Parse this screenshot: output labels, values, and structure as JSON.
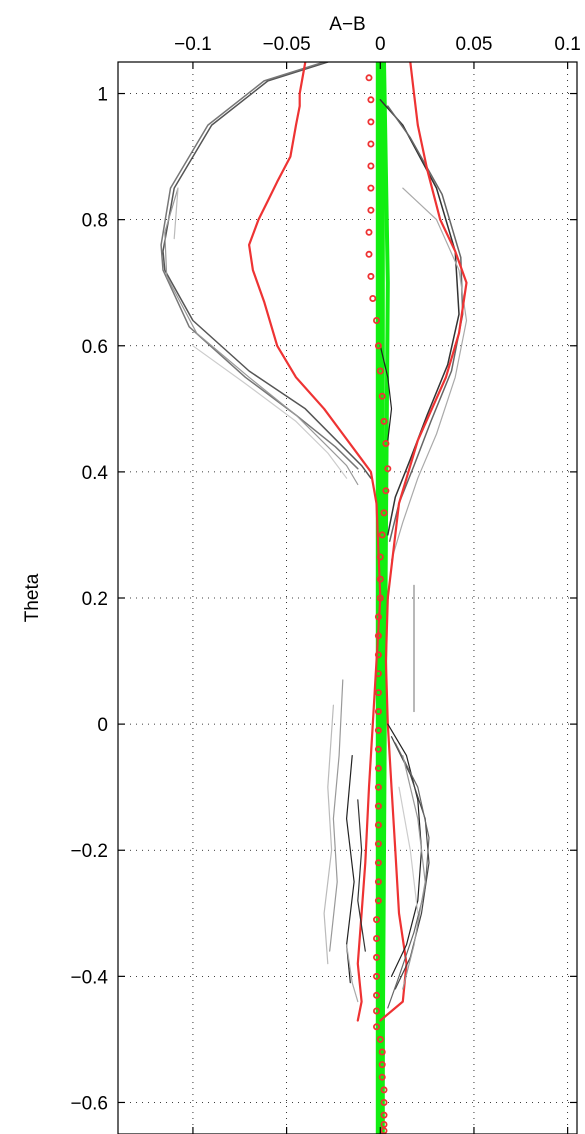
{
  "chart_data": {
    "type": "line",
    "title": "",
    "xlabel": "A−B",
    "ylabel": "Theta",
    "xlim": [
      -0.14,
      0.105
    ],
    "ylim": [
      -0.65,
      1.05
    ],
    "x_axis_position": "top",
    "grid": true,
    "legend": "none",
    "xticks": [
      -0.1,
      -0.05,
      0,
      0.05,
      0.1
    ],
    "xtick_labels": [
      "−0.1",
      "−0.05",
      "0",
      "0.05",
      "0.1"
    ],
    "yticks": [
      1,
      0.8,
      0.6,
      0.4,
      0.2,
      0,
      -0.2,
      -0.4,
      -0.6
    ],
    "ytick_labels": [
      "1",
      "0.8",
      "0.6",
      "0.4",
      "0.2",
      "0",
      "−0.2",
      "−0.4",
      "−0.6"
    ],
    "colors": {
      "red": "#ee3333",
      "green": "#11ee11",
      "dark": "#222222",
      "mid": "#707070",
      "light": "#bbbbbb"
    },
    "series": [
      {
        "color": "#11ee11",
        "width": 9,
        "points": [
          [
            0.0,
            -0.65
          ],
          [
            0.0,
            1.05
          ]
        ]
      },
      {
        "color": "#11ee11",
        "width": 4,
        "points": [
          [
            0.001,
            -0.65
          ],
          [
            0.002,
            -0.2
          ],
          [
            0.003,
            0.3
          ],
          [
            0.004,
            0.7
          ],
          [
            0.002,
            1.05
          ]
        ]
      },
      {
        "color": "#555555",
        "width": 1.5,
        "points": [
          [
            -0.028,
            1.05
          ],
          [
            -0.06,
            1.02
          ],
          [
            -0.09,
            0.95
          ],
          [
            -0.11,
            0.85
          ],
          [
            -0.116,
            0.75
          ],
          [
            -0.115,
            0.72
          ],
          [
            -0.1,
            0.64
          ],
          [
            -0.07,
            0.56
          ],
          [
            -0.04,
            0.5
          ],
          [
            -0.02,
            0.44
          ],
          [
            -0.01,
            0.41
          ],
          [
            -0.005,
            0.39
          ]
        ]
      },
      {
        "color": "#777777",
        "width": 1.5,
        "points": [
          [
            -0.03,
            1.05
          ],
          [
            -0.062,
            1.02
          ],
          [
            -0.092,
            0.95
          ],
          [
            -0.112,
            0.85
          ],
          [
            -0.117,
            0.76
          ],
          [
            -0.116,
            0.72
          ],
          [
            -0.102,
            0.63
          ],
          [
            -0.072,
            0.55
          ],
          [
            -0.045,
            0.49
          ],
          [
            -0.024,
            0.44
          ],
          [
            -0.012,
            0.405
          ]
        ]
      },
      {
        "color": "#999999",
        "width": 1.2,
        "points": [
          [
            -0.108,
            0.85
          ],
          [
            -0.115,
            0.78
          ],
          [
            -0.114,
            0.71
          ],
          [
            -0.098,
            0.62
          ],
          [
            -0.07,
            0.55
          ],
          [
            -0.045,
            0.49
          ],
          [
            -0.028,
            0.44
          ],
          [
            -0.018,
            0.41
          ],
          [
            -0.012,
            0.38
          ]
        ]
      },
      {
        "color": "#cccccc",
        "width": 1.2,
        "points": [
          [
            -0.1,
            0.6
          ],
          [
            -0.072,
            0.54
          ],
          [
            -0.045,
            0.48
          ],
          [
            -0.028,
            0.43
          ],
          [
            -0.018,
            0.39
          ]
        ]
      },
      {
        "color": "#bbbbbb",
        "width": 1.2,
        "points": [
          [
            -0.11,
            0.77
          ],
          [
            -0.108,
            0.85
          ]
        ]
      },
      {
        "color": "#333333",
        "width": 1.5,
        "points": [
          [
            0.0,
            0.99
          ],
          [
            0.012,
            0.95
          ],
          [
            0.03,
            0.85
          ],
          [
            0.04,
            0.75
          ],
          [
            0.042,
            0.65
          ],
          [
            0.036,
            0.57
          ],
          [
            0.025,
            0.49
          ],
          [
            0.016,
            0.42
          ],
          [
            0.008,
            0.36
          ],
          [
            0.004,
            0.3
          ]
        ]
      },
      {
        "color": "#666666",
        "width": 1.5,
        "points": [
          [
            0.004,
            0.98
          ],
          [
            0.016,
            0.93
          ],
          [
            0.033,
            0.84
          ],
          [
            0.043,
            0.74
          ],
          [
            0.044,
            0.65
          ],
          [
            0.038,
            0.56
          ],
          [
            0.027,
            0.48
          ],
          [
            0.018,
            0.41
          ],
          [
            0.01,
            0.35
          ],
          [
            0.005,
            0.29
          ]
        ]
      },
      {
        "color": "#aaaaaa",
        "width": 1.2,
        "points": [
          [
            0.012,
            0.85
          ],
          [
            0.03,
            0.8
          ],
          [
            0.042,
            0.72
          ],
          [
            0.046,
            0.64
          ],
          [
            0.04,
            0.55
          ],
          [
            0.03,
            0.46
          ],
          [
            0.02,
            0.39
          ],
          [
            0.012,
            0.32
          ],
          [
            0.006,
            0.26
          ]
        ]
      },
      {
        "color": "#222222",
        "width": 1.2,
        "points": [
          [
            0.0,
            0.6
          ],
          [
            0.004,
            0.55
          ],
          [
            0.006,
            0.5
          ],
          [
            0.004,
            0.45
          ]
        ]
      },
      {
        "color": "#888888",
        "width": 1.2,
        "points": [
          [
            0.018,
            0.22
          ],
          [
            0.018,
            0.02
          ]
        ]
      },
      {
        "color": "#ee3333",
        "width": 2.2,
        "points": [
          [
            -0.012,
            -0.47
          ],
          [
            -0.01,
            -0.44
          ],
          [
            -0.012,
            -0.38
          ],
          [
            -0.01,
            -0.3
          ],
          [
            -0.008,
            -0.22
          ],
          [
            -0.006,
            -0.1
          ],
          [
            -0.004,
            0.0
          ],
          [
            -0.002,
            0.1
          ],
          [
            0.0,
            0.2
          ],
          [
            -0.002,
            0.35
          ],
          [
            -0.005,
            0.4
          ],
          [
            -0.01,
            0.42
          ],
          [
            -0.02,
            0.46
          ],
          [
            -0.03,
            0.5
          ],
          [
            -0.045,
            0.55
          ],
          [
            -0.055,
            0.6
          ],
          [
            -0.062,
            0.67
          ],
          [
            -0.068,
            0.72
          ],
          [
            -0.07,
            0.76
          ],
          [
            -0.065,
            0.8
          ],
          [
            -0.06,
            0.83
          ],
          [
            -0.055,
            0.86
          ],
          [
            -0.048,
            0.9
          ],
          [
            -0.045,
            0.95
          ],
          [
            -0.043,
            0.98
          ],
          [
            -0.043,
            1.0
          ],
          [
            -0.04,
            1.05
          ]
        ]
      },
      {
        "color": "#ee3333",
        "width": 2.2,
        "points": [
          [
            0.0,
            -0.47
          ],
          [
            0.012,
            -0.44
          ],
          [
            0.014,
            -0.38
          ],
          [
            0.01,
            -0.3
          ],
          [
            0.008,
            -0.2
          ],
          [
            0.006,
            -0.1
          ],
          [
            0.004,
            0.0
          ],
          [
            0.003,
            0.1
          ],
          [
            0.004,
            0.2
          ],
          [
            0.01,
            0.35
          ],
          [
            0.02,
            0.45
          ],
          [
            0.035,
            0.55
          ],
          [
            0.042,
            0.62
          ],
          [
            0.046,
            0.7
          ],
          [
            0.04,
            0.75
          ],
          [
            0.032,
            0.8
          ],
          [
            0.025,
            0.88
          ],
          [
            0.02,
            0.95
          ],
          [
            0.018,
            1.0
          ],
          [
            0.016,
            1.05
          ]
        ]
      },
      {
        "color": "#222222",
        "width": 1.2,
        "points": [
          [
            -0.015,
            -0.05
          ],
          [
            -0.018,
            -0.15
          ],
          [
            -0.014,
            -0.25
          ],
          [
            -0.018,
            -0.35
          ],
          [
            -0.016,
            -0.41
          ]
        ]
      },
      {
        "color": "#333333",
        "width": 1.2,
        "points": [
          [
            -0.012,
            -0.12
          ],
          [
            -0.01,
            -0.2
          ],
          [
            -0.012,
            -0.28
          ],
          [
            -0.008,
            -0.36
          ]
        ]
      },
      {
        "color": "#999999",
        "width": 1.2,
        "points": [
          [
            -0.02,
            0.07
          ],
          [
            -0.022,
            -0.05
          ],
          [
            -0.025,
            -0.15
          ],
          [
            -0.023,
            -0.25
          ],
          [
            -0.027,
            -0.36
          ]
        ]
      },
      {
        "color": "#bbbbbb",
        "width": 1.2,
        "points": [
          [
            -0.025,
            0.03
          ],
          [
            -0.028,
            -0.1
          ],
          [
            -0.026,
            -0.2
          ],
          [
            -0.03,
            -0.3
          ],
          [
            -0.028,
            -0.38
          ]
        ]
      },
      {
        "color": "#aaaaaa",
        "width": 1.2,
        "points": [
          [
            -0.018,
            -0.35
          ],
          [
            -0.015,
            -0.41
          ],
          [
            -0.012,
            -0.44
          ]
        ]
      },
      {
        "color": "#222222",
        "width": 1.2,
        "points": [
          [
            0.004,
            0.0
          ],
          [
            0.014,
            -0.05
          ],
          [
            0.02,
            -0.12
          ],
          [
            0.022,
            -0.2
          ],
          [
            0.02,
            -0.28
          ],
          [
            0.014,
            -0.35
          ],
          [
            0.006,
            -0.4
          ]
        ]
      },
      {
        "color": "#444444",
        "width": 1.2,
        "points": [
          [
            0.006,
            -0.02
          ],
          [
            0.016,
            -0.08
          ],
          [
            0.024,
            -0.15
          ],
          [
            0.026,
            -0.22
          ],
          [
            0.022,
            -0.3
          ],
          [
            0.016,
            -0.37
          ],
          [
            0.008,
            -0.42
          ]
        ]
      },
      {
        "color": "#666666",
        "width": 1.2,
        "points": [
          [
            0.008,
            -0.03
          ],
          [
            0.02,
            -0.1
          ],
          [
            0.026,
            -0.18
          ],
          [
            0.024,
            -0.26
          ],
          [
            0.018,
            -0.33
          ],
          [
            0.01,
            -0.4
          ],
          [
            0.004,
            -0.45
          ]
        ]
      },
      {
        "color": "#999999",
        "width": 1.2,
        "points": [
          [
            0.012,
            -0.05
          ],
          [
            0.02,
            -0.15
          ],
          [
            0.024,
            -0.25
          ],
          [
            0.018,
            -0.35
          ],
          [
            0.012,
            -0.42
          ]
        ]
      },
      {
        "color": "#cccccc",
        "width": 1.2,
        "points": [
          [
            0.01,
            -0.1
          ],
          [
            0.016,
            -0.2
          ],
          [
            0.02,
            -0.3
          ]
        ]
      }
    ],
    "marker_series": {
      "color": "#ee3333",
      "marker": "circle",
      "points": [
        [
          -0.006,
          1.025
        ],
        [
          -0.005,
          0.99
        ],
        [
          -0.005,
          0.955
        ],
        [
          -0.005,
          0.92
        ],
        [
          -0.005,
          0.885
        ],
        [
          -0.005,
          0.85
        ],
        [
          -0.005,
          0.815
        ],
        [
          -0.006,
          0.78
        ],
        [
          -0.006,
          0.745
        ],
        [
          -0.005,
          0.71
        ],
        [
          -0.004,
          0.675
        ],
        [
          -0.002,
          0.64
        ],
        [
          -0.001,
          0.6
        ],
        [
          0.0,
          0.56
        ],
        [
          0.001,
          0.52
        ],
        [
          0.002,
          0.48
        ],
        [
          0.003,
          0.445
        ],
        [
          0.004,
          0.405
        ],
        [
          0.003,
          0.37
        ],
        [
          0.002,
          0.335
        ],
        [
          0.001,
          0.3
        ],
        [
          0.0,
          0.265
        ],
        [
          0.0,
          0.23
        ],
        [
          0.0,
          0.2
        ],
        [
          -0.001,
          0.17
        ],
        [
          -0.001,
          0.14
        ],
        [
          -0.001,
          0.11
        ],
        [
          -0.001,
          0.08
        ],
        [
          -0.001,
          0.05
        ],
        [
          -0.001,
          0.02
        ],
        [
          -0.001,
          -0.01
        ],
        [
          -0.001,
          -0.04
        ],
        [
          -0.001,
          -0.07
        ],
        [
          -0.001,
          -0.1
        ],
        [
          -0.001,
          -0.13
        ],
        [
          -0.001,
          -0.16
        ],
        [
          -0.001,
          -0.19
        ],
        [
          -0.001,
          -0.22
        ],
        [
          -0.001,
          -0.25
        ],
        [
          -0.001,
          -0.28
        ],
        [
          -0.002,
          -0.31
        ],
        [
          -0.002,
          -0.34
        ],
        [
          -0.002,
          -0.37
        ],
        [
          -0.002,
          -0.4
        ],
        [
          -0.002,
          -0.43
        ],
        [
          -0.002,
          -0.455
        ],
        [
          -0.002,
          -0.48
        ],
        [
          0.0,
          -0.5
        ],
        [
          0.001,
          -0.52
        ],
        [
          0.001,
          -0.54
        ],
        [
          0.001,
          -0.56
        ],
        [
          0.002,
          -0.58
        ],
        [
          0.002,
          -0.6
        ],
        [
          0.002,
          -0.62
        ],
        [
          0.002,
          -0.635
        ],
        [
          0.002,
          -0.645
        ]
      ]
    }
  }
}
